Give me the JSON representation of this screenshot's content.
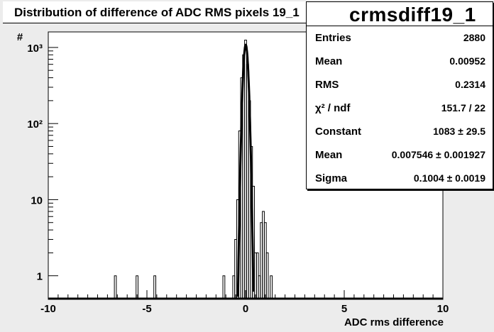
{
  "title": "Distribution of difference of ADC RMS   pixels 19_1",
  "stats": {
    "name": "crmsdiff19_1",
    "rows": [
      {
        "label": "Entries",
        "value": "2880"
      },
      {
        "label": "Mean",
        "value": "0.00952"
      },
      {
        "label": "RMS",
        "value": "0.2314"
      },
      {
        "label": "χ² / ndf",
        "value": "151.7 / 22"
      },
      {
        "label": "Constant",
        "value": "1083 ± 29.5"
      },
      {
        "label": "Mean",
        "value": "0.007546 ± 0.001927"
      },
      {
        "label": "Sigma",
        "value": "0.1004 ± 0.0019"
      }
    ]
  },
  "chart_data": {
    "type": "histogram",
    "title": "Distribution of difference of ADC RMS   pixels 19_1",
    "xlabel": "ADC rms difference",
    "ylabel": "#",
    "xlim": [
      -10,
      10
    ],
    "ylim": [
      0.5,
      1600
    ],
    "yscale": "log",
    "x_ticks": [
      "-10",
      "-5",
      "0",
      "5",
      "10"
    ],
    "y_ticks": [
      {
        "value": 1,
        "label": "1"
      },
      {
        "value": 10,
        "label": "10"
      },
      {
        "value": 100,
        "label": "10²"
      },
      {
        "value": 1000,
        "label": "10³"
      }
    ],
    "bin_width": 0.1,
    "bins": [
      {
        "x": -6.6,
        "count": 1
      },
      {
        "x": -5.5,
        "count": 1
      },
      {
        "x": -4.6,
        "count": 1
      },
      {
        "x": -1.1,
        "count": 1
      },
      {
        "x": -0.6,
        "count": 1
      },
      {
        "x": -0.5,
        "count": 3
      },
      {
        "x": -0.4,
        "count": 10
      },
      {
        "x": -0.3,
        "count": 80
      },
      {
        "x": -0.2,
        "count": 400
      },
      {
        "x": -0.1,
        "count": 800
      },
      {
        "x": 0.0,
        "count": 1250
      },
      {
        "x": 0.1,
        "count": 600
      },
      {
        "x": 0.2,
        "count": 200
      },
      {
        "x": 0.3,
        "count": 50
      },
      {
        "x": 0.4,
        "count": 15
      },
      {
        "x": 0.5,
        "count": 2
      },
      {
        "x": 0.6,
        "count": 2
      },
      {
        "x": 0.7,
        "count": 1
      },
      {
        "x": 0.8,
        "count": 5
      },
      {
        "x": 0.9,
        "count": 7
      },
      {
        "x": 1.0,
        "count": 5
      },
      {
        "x": 1.1,
        "count": 2
      },
      {
        "x": 1.3,
        "count": 1
      }
    ],
    "fit": {
      "type": "gaussian",
      "constant": 1083,
      "mean": 0.007546,
      "sigma": 0.1004
    }
  }
}
